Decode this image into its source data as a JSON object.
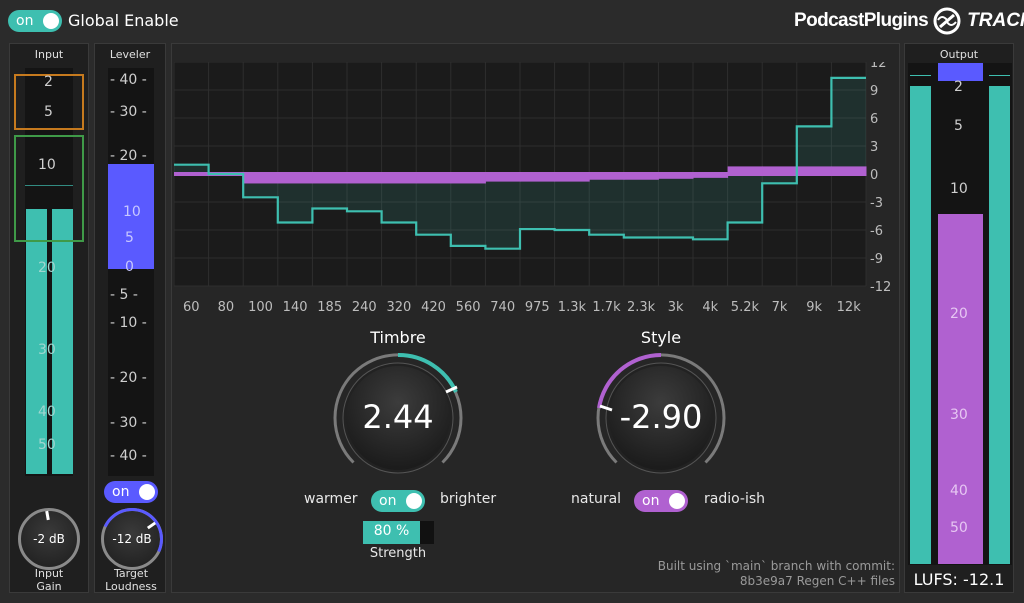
{
  "header": {
    "global_enable_toggle": "on",
    "global_enable_label": "Global Enable",
    "brand_name": "PodcastPlugins",
    "product_name": "TRACK"
  },
  "input": {
    "title": "Input",
    "scale": [
      "2",
      "5",
      "10",
      "20",
      "30",
      "40",
      "50"
    ],
    "knob_value": "-2 dB",
    "knob_label_line1": "Input",
    "knob_label_line2": "Gain"
  },
  "leveler": {
    "title": "Leveler",
    "scale": [
      "- 40 -",
      "- 30 -",
      "- 20 -",
      "10",
      "5",
      "0",
      "- 5 -",
      "- 10 -",
      "- 20 -",
      "- 30 -",
      "- 40 -"
    ],
    "toggle": "on",
    "knob_value": "-12 dB",
    "knob_label_line1": "Target",
    "knob_label_line2": "Loudness"
  },
  "eq": {
    "y_ticks": [
      "12",
      "9",
      "6",
      "3",
      "0",
      "-3",
      "-6",
      "-9",
      "-12"
    ],
    "x_ticks": [
      "60",
      "80",
      "100",
      "140",
      "185",
      "240",
      "320",
      "420",
      "560",
      "740",
      "975",
      "1.3k",
      "1.7k",
      "2.3k",
      "3k",
      "4k",
      "5.2k",
      "7k",
      "9k",
      "12k"
    ],
    "teal_curve_db": [
      1,
      0,
      -2.5,
      -5.2,
      -3.7,
      -4,
      -5.2,
      -6.5,
      -7.7,
      -8,
      -5.9,
      -6,
      -6.5,
      -6.8,
      -6.8,
      -7,
      -5.2,
      -1,
      5.1,
      10.3
    ],
    "purple_curve_db": [
      0,
      0,
      -0.8,
      -0.8,
      -0.8,
      -0.8,
      -0.8,
      -0.8,
      -0.8,
      -0.6,
      -0.6,
      -0.6,
      -0.4,
      -0.4,
      -0.3,
      -0.2,
      0.6,
      0.6,
      0.6,
      0.6
    ],
    "colors": {
      "teal": "#3ebfb0",
      "purple": "#b061d0"
    }
  },
  "timbre": {
    "title": "Timbre",
    "value": "2.44",
    "left_label": "warmer",
    "toggle": "on",
    "right_label": "brighter",
    "strength_value": "80 %",
    "strength_fraction": 0.8,
    "strength_label": "Strength"
  },
  "style": {
    "title": "Style",
    "value": "-2.90",
    "left_label": "natural",
    "toggle": "on",
    "right_label": "radio-ish"
  },
  "build_info": {
    "line1": "Built using `main` branch with commit:",
    "line2": "8b3e9a7 Regen C++ files"
  },
  "output": {
    "title": "Output",
    "scale": [
      "2",
      "5",
      "10",
      "20",
      "30",
      "40",
      "50"
    ],
    "lufs_label": "LUFS: -12.1"
  }
}
